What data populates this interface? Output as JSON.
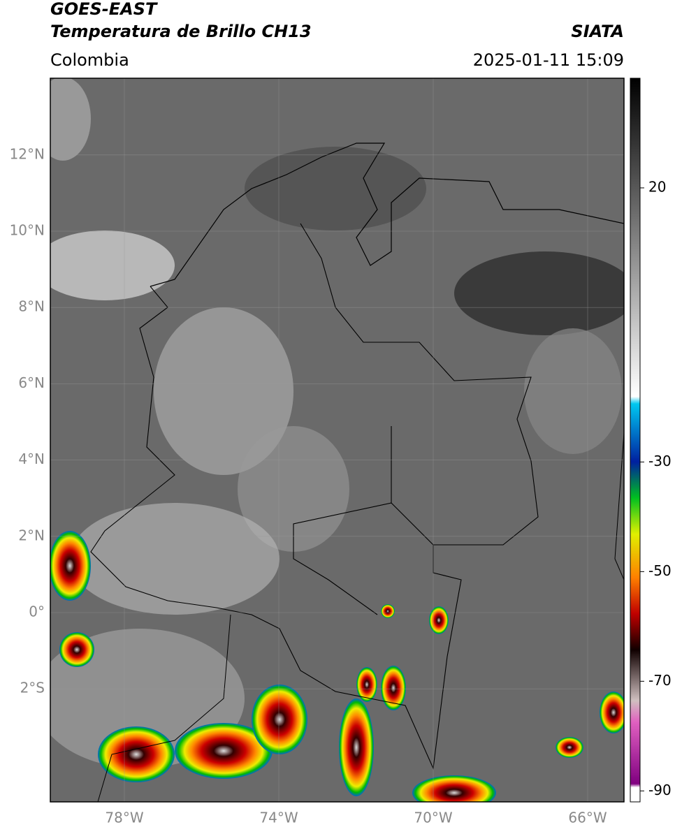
{
  "header": {
    "title_line1": "GOES-EAST",
    "title_line2": "Temperatura de Brillo CH13",
    "source": "SIATA",
    "region": "Colombia",
    "datetime": "2025-01-11 15:09"
  },
  "map": {
    "lat_ticks": [
      {
        "value": 12,
        "label": "12°N"
      },
      {
        "value": 10,
        "label": "10°N"
      },
      {
        "value": 8,
        "label": "8°N"
      },
      {
        "value": 6,
        "label": "6°N"
      },
      {
        "value": 4,
        "label": "4°N"
      },
      {
        "value": 2,
        "label": "2°N"
      },
      {
        "value": 0,
        "label": "0°"
      },
      {
        "value": -2,
        "label": "2°S"
      }
    ],
    "lon_ticks": [
      {
        "value": -78,
        "label": "78°W"
      },
      {
        "value": -74,
        "label": "74°W"
      },
      {
        "value": -70,
        "label": "70°W"
      },
      {
        "value": -66,
        "label": "66°W"
      }
    ]
  },
  "colorbar": {
    "lim": [
      -92,
      40
    ],
    "ticks": [
      20,
      -30,
      -50,
      -70,
      -90
    ]
  }
}
